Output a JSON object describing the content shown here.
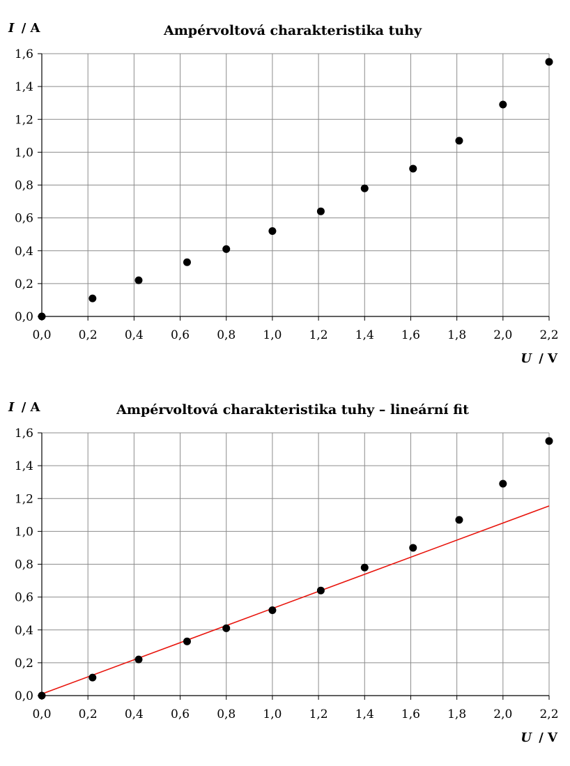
{
  "chart_data": [
    {
      "type": "scatter",
      "title": "Ampérvoltová charakteristika tuhy",
      "ylabel_var": "I",
      "ylabel_unit": "/ A",
      "xlabel_var": "U",
      "xlabel_unit": "/ V",
      "xlim": [
        0,
        2.2
      ],
      "ylim": [
        0,
        1.6
      ],
      "xticks": [
        "0,0",
        "0,2",
        "0,4",
        "0,6",
        "0,8",
        "1,0",
        "1,2",
        "1,4",
        "1,6",
        "1,8",
        "2,0",
        "2,2"
      ],
      "yticks": [
        "0,0",
        "0,2",
        "0,4",
        "0,6",
        "0,8",
        "1,0",
        "1,2",
        "1,4",
        "1,6"
      ],
      "grid": true,
      "series": [
        {
          "x": [
            0.0,
            0.22,
            0.42,
            0.63,
            0.8,
            1.0,
            1.21,
            1.4,
            1.61,
            1.81,
            2.0,
            2.2
          ],
          "y": [
            0.0,
            0.11,
            0.22,
            0.33,
            0.41,
            0.52,
            0.64,
            0.78,
            0.9,
            1.07,
            1.29,
            1.55
          ]
        }
      ]
    },
    {
      "type": "scatter",
      "title": "Ampérvoltová charakteristika tuhy – lineární fit",
      "ylabel_var": "I",
      "ylabel_unit": "/ A",
      "xlabel_var": "U",
      "xlabel_unit": "/ V",
      "xlim": [
        0,
        2.2
      ],
      "ylim": [
        0,
        1.6
      ],
      "xticks": [
        "0,0",
        "0,2",
        "0,4",
        "0,6",
        "0,8",
        "1,0",
        "1,2",
        "1,4",
        "1,6",
        "1,8",
        "2,0",
        "2,2"
      ],
      "yticks": [
        "0,0",
        "0,2",
        "0,4",
        "0,6",
        "0,8",
        "1,0",
        "1,2",
        "1,4",
        "1,6"
      ],
      "grid": true,
      "series": [
        {
          "x": [
            0.0,
            0.22,
            0.42,
            0.63,
            0.8,
            1.0,
            1.21,
            1.4,
            1.61,
            1.81,
            2.0,
            2.2
          ],
          "y": [
            0.0,
            0.11,
            0.22,
            0.33,
            0.41,
            0.52,
            0.64,
            0.78,
            0.9,
            1.07,
            1.29,
            1.55
          ]
        }
      ],
      "fit_line": {
        "x": [
          0.0,
          2.2
        ],
        "y": [
          0.01,
          1.155
        ],
        "color": "#e8140c"
      }
    }
  ]
}
